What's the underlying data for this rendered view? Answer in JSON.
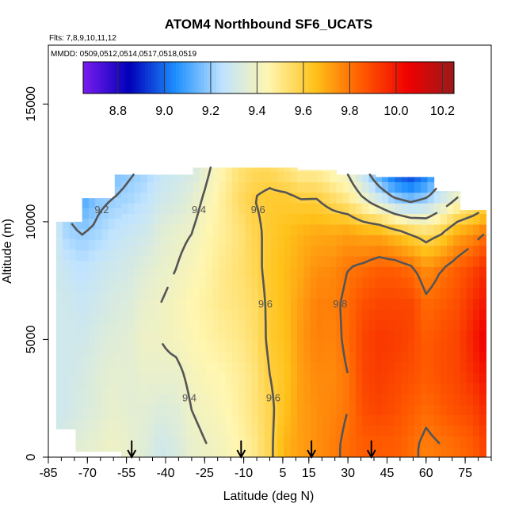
{
  "chart_data": {
    "type": "heatmap",
    "title": "ATOM4 Northbound SF6_UCATS",
    "flights_text": "Flts: 7,8,9,10,11,12",
    "dates_text": "MMDD: 0509,0512,0514,0517,0518,0519",
    "xlabel": "Latitude (deg N)",
    "ylabel": "Altitude (m)",
    "xlim": [
      -85,
      85
    ],
    "ylim": [
      0,
      17500
    ],
    "x_ticks": [
      -85,
      -70,
      -55,
      -40,
      -25,
      -10,
      5,
      15,
      30,
      45,
      60,
      75
    ],
    "y_ticks": [
      0,
      5000,
      10000,
      15000
    ],
    "colorbar": {
      "range": [
        8.65,
        10.25
      ],
      "ticks": [
        "8.8",
        "9.0",
        "9.2",
        "9.4",
        "9.6",
        "9.8",
        "10.0",
        "10.2"
      ],
      "colors": [
        "#7a1cf0",
        "#0000b8",
        "#1e90ff",
        "#bfe3ff",
        "#fff6b0",
        "#ffc21a",
        "#ff5c00",
        "#f00000",
        "#9a1a1a"
      ]
    },
    "contour_levels": [
      "9.2",
      "9.4",
      "9.6",
      "9.8"
    ],
    "profile_latitudes": [
      -53,
      -11,
      16,
      39
    ],
    "field_summary": {
      "latitude_bins": [
        -82,
        -78,
        -72,
        -66,
        -60,
        -54,
        -48,
        -42,
        -36,
        -30,
        -24,
        -18,
        -12,
        -6,
        0,
        6,
        12,
        18,
        24,
        30,
        36,
        42,
        48,
        54,
        60,
        66,
        72,
        78,
        82
      ],
      "altitude_bins": [
        500,
        2000,
        3500,
        5000,
        6500,
        8000,
        9500,
        11000,
        12500
      ],
      "values": [
        [
          9.3,
          9.3,
          9.3,
          9.3,
          9.3,
          9.3,
          9.3,
          9.3,
          9.3
        ],
        [
          9.35,
          9.3,
          9.3,
          9.3,
          9.3,
          9.28,
          9.22,
          9.2,
          9.2
        ],
        [
          9.36,
          9.33,
          9.32,
          9.3,
          9.28,
          9.25,
          9.2,
          9.1,
          9.0
        ],
        [
          9.38,
          9.35,
          9.35,
          9.33,
          9.3,
          9.28,
          9.22,
          9.18,
          9.1
        ],
        [
          9.4,
          9.38,
          9.37,
          9.35,
          9.33,
          9.3,
          9.26,
          9.2,
          9.15
        ],
        [
          9.38,
          9.36,
          9.36,
          9.36,
          9.34,
          9.32,
          9.28,
          9.22,
          9.18
        ],
        [
          9.35,
          9.36,
          9.38,
          9.4,
          9.38,
          9.35,
          9.3,
          9.25,
          9.2
        ],
        [
          9.3,
          9.34,
          9.38,
          9.4,
          9.4,
          9.38,
          9.35,
          9.3,
          9.25
        ],
        [
          9.33,
          9.35,
          9.38,
          9.42,
          9.42,
          9.4,
          9.38,
          9.32,
          9.28
        ],
        [
          9.38,
          9.4,
          9.42,
          9.44,
          9.45,
          9.43,
          9.4,
          9.36,
          9.3
        ],
        [
          9.4,
          9.42,
          9.44,
          9.46,
          9.47,
          9.46,
          9.45,
          9.42,
          9.38
        ],
        [
          9.42,
          9.44,
          9.45,
          9.48,
          9.5,
          9.5,
          9.48,
          9.48,
          9.45
        ],
        [
          9.45,
          9.47,
          9.48,
          9.5,
          9.52,
          9.53,
          9.52,
          9.55,
          9.52
        ],
        [
          9.5,
          9.52,
          9.52,
          9.54,
          9.55,
          9.57,
          9.58,
          9.6,
          9.55
        ],
        [
          9.58,
          9.58,
          9.6,
          9.62,
          9.62,
          9.63,
          9.62,
          9.62,
          9.55
        ],
        [
          9.68,
          9.65,
          9.64,
          9.65,
          9.66,
          9.66,
          9.65,
          9.62,
          9.5
        ],
        [
          9.72,
          9.72,
          9.72,
          9.73,
          9.72,
          9.7,
          9.68,
          9.6,
          9.45
        ],
        [
          9.75,
          9.75,
          9.76,
          9.78,
          9.78,
          9.75,
          9.7,
          9.6,
          9.45
        ],
        [
          9.78,
          9.77,
          9.76,
          9.77,
          9.78,
          9.76,
          9.7,
          9.55,
          9.4
        ],
        [
          9.82,
          9.8,
          9.8,
          9.82,
          9.82,
          9.8,
          9.72,
          9.5,
          9.35
        ],
        [
          9.85,
          9.88,
          9.9,
          9.9,
          9.88,
          9.82,
          9.7,
          9.4,
          9.2
        ],
        [
          9.85,
          9.9,
          9.92,
          9.93,
          9.9,
          9.85,
          9.7,
          9.3,
          9.0
        ],
        [
          9.85,
          9.88,
          9.9,
          9.92,
          9.9,
          9.85,
          9.65,
          9.2,
          8.85
        ],
        [
          9.82,
          9.85,
          9.88,
          9.9,
          9.9,
          9.82,
          9.6,
          9.15,
          8.8
        ],
        [
          9.78,
          9.82,
          9.85,
          9.85,
          9.82,
          9.75,
          9.55,
          9.2,
          8.9
        ],
        [
          9.8,
          9.85,
          9.88,
          9.88,
          9.85,
          9.8,
          9.6,
          9.3,
          9.1
        ],
        [
          9.82,
          9.88,
          9.9,
          9.9,
          9.88,
          9.85,
          9.7,
          9.4,
          9.2
        ],
        [
          9.85,
          9.9,
          9.95,
          9.98,
          9.95,
          9.9,
          9.75,
          9.45,
          9.3
        ],
        [
          9.9,
          9.95,
          10.0,
          10.05,
          10.0,
          9.95,
          9.8,
          9.5,
          9.35
        ]
      ]
    }
  }
}
